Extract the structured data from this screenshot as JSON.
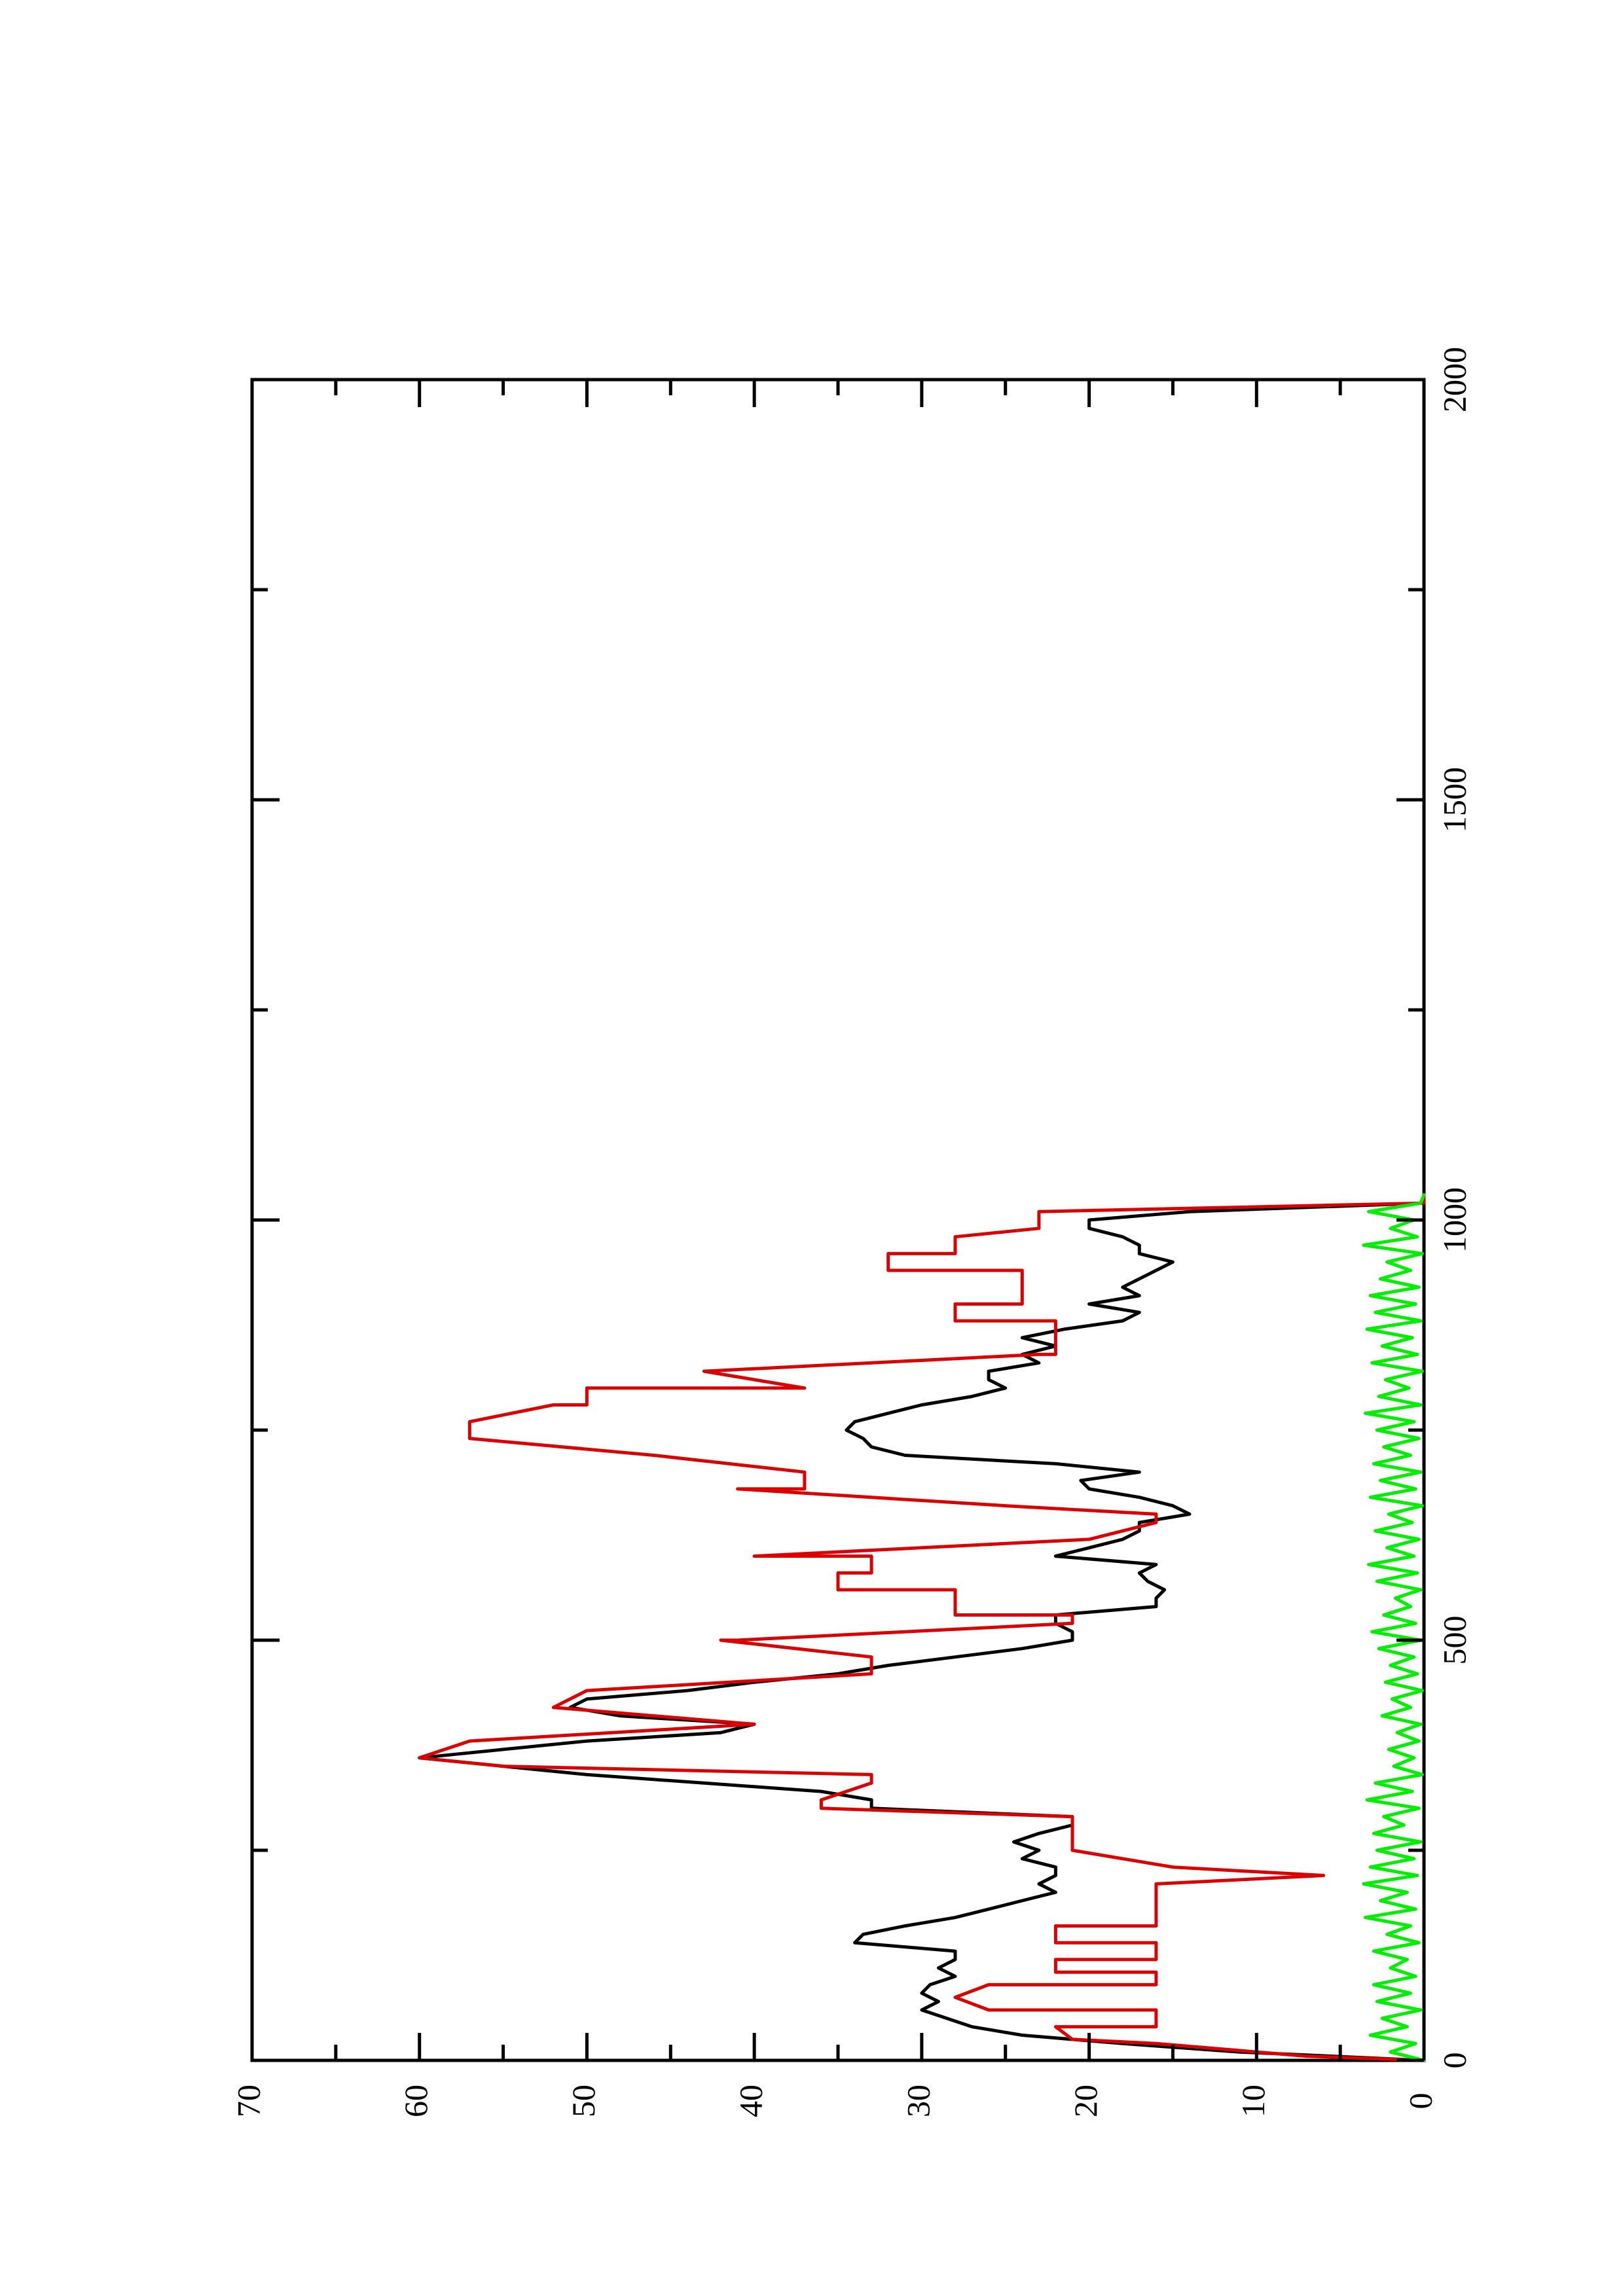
{
  "chart_data": {
    "type": "line",
    "orientation": "rotated-90-clockwise",
    "title": "",
    "xlabel": "",
    "ylabel": "",
    "xlim": [
      0,
      2000
    ],
    "ylim": [
      0,
      70
    ],
    "grid": false,
    "legend": "none",
    "x_ticks": [
      0,
      500,
      1000,
      1500,
      2000
    ],
    "x_minor_ticks": [
      250,
      750,
      1250,
      1750
    ],
    "y_ticks": [
      0,
      10,
      20,
      30,
      40,
      50,
      60,
      70
    ],
    "y_minor_ticks": [
      5,
      15,
      25,
      35,
      45,
      55,
      65
    ],
    "x_tick_labels": [
      "0",
      "500",
      "1000",
      "1500",
      "2000"
    ],
    "y_tick_labels": [
      "0",
      "10",
      "20",
      "30",
      "40",
      "50",
      "60",
      "70"
    ],
    "series": [
      {
        "color": "#000000",
        "x": [
          0,
          10,
          20,
          30,
          40,
          50,
          60,
          70,
          80,
          90,
          100,
          110,
          120,
          130,
          140,
          150,
          160,
          170,
          180,
          190,
          200,
          210,
          220,
          230,
          240,
          250,
          260,
          270,
          280,
          290,
          300,
          310,
          320,
          330,
          340,
          350,
          360,
          370,
          380,
          390,
          400,
          410,
          420,
          430,
          440,
          450,
          460,
          470,
          480,
          490,
          500,
          510,
          520,
          530,
          540,
          550,
          560,
          570,
          580,
          590,
          600,
          610,
          620,
          630,
          640,
          650,
          660,
          670,
          680,
          690,
          700,
          710,
          720,
          730,
          740,
          750,
          760,
          770,
          780,
          790,
          800,
          810,
          820,
          830,
          840,
          850,
          860,
          870,
          880,
          890,
          900,
          910,
          920,
          930,
          940,
          950,
          960,
          970,
          980,
          990,
          1000,
          1010,
          1020
        ],
        "y": [
          0,
          11,
          18,
          24,
          27,
          28.5,
          30,
          29,
          30,
          29.5,
          28,
          29,
          28,
          28,
          34,
          33.5,
          31,
          28,
          26,
          24,
          22,
          23,
          22,
          22,
          24,
          23,
          24.5,
          23,
          21,
          21,
          33,
          33,
          36,
          43,
          50,
          55,
          60,
          55,
          50,
          42,
          40,
          48,
          51,
          50,
          44,
          40,
          35,
          32,
          28,
          24,
          21,
          21,
          22,
          22,
          16,
          16,
          15.5,
          16.5,
          17,
          16,
          22,
          20,
          18,
          17,
          17,
          14,
          15,
          17,
          20,
          20.5,
          17,
          22,
          31,
          33,
          33.5,
          34.5,
          34,
          32,
          30,
          27,
          25,
          26,
          26,
          23,
          24,
          22,
          24,
          21.5,
          18,
          17,
          20,
          17,
          18,
          17,
          16,
          15,
          17,
          17,
          18,
          20,
          20,
          14,
          0
        ]
      },
      {
        "color": "#dd0000",
        "x": [
          0,
          5,
          20,
          25,
          40,
          40,
          60,
          60,
          75,
          75,
          90,
          90,
          105,
          105,
          120,
          120,
          140,
          140,
          160,
          160,
          200,
          210,
          220,
          230,
          250,
          270,
          290,
          300,
          310,
          330,
          340,
          350,
          360,
          380,
          400,
          420,
          440,
          460,
          480,
          500,
          500,
          520,
          530,
          530,
          560,
          560,
          580,
          580,
          600,
          600,
          620,
          640,
          650,
          660,
          680,
          680,
          700,
          720,
          740,
          760,
          780,
          780,
          800,
          800,
          820,
          840,
          840,
          880,
          880,
          900,
          900,
          940,
          940,
          960,
          960,
          980,
          990,
          1010,
          1020,
          1030
        ],
        "y": [
          0,
          7,
          16,
          21,
          22,
          16,
          16,
          26,
          28,
          28,
          26,
          16,
          16,
          22,
          22,
          16,
          16,
          22,
          22,
          16,
          16,
          16,
          6,
          15,
          21,
          21,
          21,
          36,
          36,
          33,
          33,
          55,
          60,
          57,
          40,
          52,
          50,
          33,
          33,
          42,
          41,
          21,
          21,
          28,
          28,
          35,
          35,
          33,
          33,
          40,
          20,
          16,
          16,
          25,
          41,
          37,
          37,
          46,
          57,
          57,
          52,
          50,
          50,
          37,
          43,
          23,
          22,
          22,
          28,
          28,
          24,
          24,
          32,
          32,
          28,
          28,
          23,
          23,
          0,
          0
        ]
      },
      {
        "color": "#00ee00",
        "x": [
          0,
          10,
          20,
          30,
          40,
          50,
          60,
          70,
          80,
          90,
          100,
          110,
          120,
          130,
          140,
          150,
          160,
          170,
          180,
          190,
          200,
          210,
          220,
          230,
          240,
          250,
          260,
          270,
          280,
          290,
          300,
          310,
          320,
          330,
          340,
          350,
          360,
          370,
          380,
          390,
          400,
          410,
          420,
          430,
          440,
          450,
          460,
          470,
          480,
          490,
          500,
          510,
          520,
          530,
          540,
          550,
          560,
          570,
          580,
          590,
          600,
          610,
          620,
          630,
          640,
          650,
          660,
          670,
          680,
          690,
          700,
          710,
          720,
          730,
          740,
          750,
          760,
          770,
          780,
          790,
          800,
          810,
          820,
          830,
          840,
          850,
          860,
          870,
          880,
          890,
          900,
          910,
          920,
          930,
          940,
          950,
          960,
          970,
          980,
          990,
          1000,
          1010,
          1020,
          1030
        ],
        "y": [
          0,
          2,
          0.5,
          3.2,
          1,
          2.5,
          0.2,
          2.8,
          0.8,
          3,
          0.5,
          2,
          1,
          3,
          0.3,
          2.2,
          0.8,
          3.5,
          0.5,
          2.6,
          1,
          3.6,
          0.4,
          3.2,
          0.6,
          2.8,
          0.2,
          3,
          1.2,
          2.4,
          0.3,
          3.4,
          0.7,
          2.9,
          0.1,
          1.8,
          0.6,
          2.1,
          0.3,
          1.6,
          0.2,
          2.5,
          0.8,
          1.9,
          0.1,
          2.3,
          0.4,
          2,
          0.6,
          2.7,
          0.2,
          3.1,
          0.5,
          2.4,
          0.8,
          1.7,
          0.2,
          2.8,
          0.4,
          3.3,
          0.6,
          2.2,
          0.3,
          2.9,
          0.7,
          2.1,
          0.1,
          3.2,
          0.5,
          2.6,
          0.2,
          3,
          0.8,
          2.4,
          0.3,
          2.8,
          0.6,
          3.5,
          0.2,
          2.7,
          0.9,
          2.3,
          0.1,
          3.1,
          0.4,
          2.5,
          0.7,
          3.4,
          0.2,
          2.9,
          0.5,
          3.2,
          0.3,
          2.6,
          0.8,
          2.2,
          0.1,
          3.6,
          0.4,
          2,
          0.6,
          3.3,
          0.2,
          0
        ]
      }
    ]
  }
}
